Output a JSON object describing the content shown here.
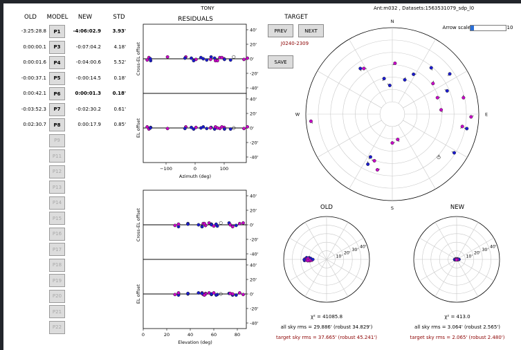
{
  "header": {
    "title": "TONY",
    "dataset_info": "Ant:m032 , Datasets:1563531079_sdp_l0"
  },
  "table": {
    "col_old": "OLD",
    "col_model": "MODEL",
    "col_new": "NEW",
    "col_std": "STD",
    "rows": [
      {
        "old": "-3:25:28.8",
        "model": "P1",
        "new": "-4:06:02.9",
        "std": "3.93'",
        "enabled": true,
        "bold": true
      },
      {
        "old": "0:00:00.1",
        "model": "P3",
        "new": "-0:07:04.2",
        "std": "4.18'",
        "enabled": true,
        "bold": false
      },
      {
        "old": "0:00:01.6",
        "model": "P4",
        "new": "-0:04:00.6",
        "std": "5.52'",
        "enabled": true,
        "bold": false
      },
      {
        "old": "-0:00:37.1",
        "model": "P5",
        "new": "-0:00:14.5",
        "std": "0.18'",
        "enabled": true,
        "bold": false
      },
      {
        "old": "0:00:42.1",
        "model": "P6",
        "new": "0:00:01.3",
        "std": "0.18'",
        "enabled": true,
        "bold": true
      },
      {
        "old": "-0:03:52.3",
        "model": "P7",
        "new": "-0:02:30.2",
        "std": "0.61'",
        "enabled": true,
        "bold": false
      },
      {
        "old": "0:02:30.7",
        "model": "P8",
        "new": "0:00:17.9",
        "std": "0.85'",
        "enabled": true,
        "bold": false
      },
      {
        "old": "",
        "model": "P9",
        "new": "",
        "std": "",
        "enabled": false,
        "bold": false
      },
      {
        "old": "",
        "model": "P11",
        "new": "",
        "std": "",
        "enabled": false,
        "bold": false
      },
      {
        "old": "",
        "model": "P12",
        "new": "",
        "std": "",
        "enabled": false,
        "bold": false
      },
      {
        "old": "",
        "model": "P13",
        "new": "",
        "std": "",
        "enabled": false,
        "bold": false
      },
      {
        "old": "",
        "model": "P14",
        "new": "",
        "std": "",
        "enabled": false,
        "bold": false
      },
      {
        "old": "",
        "model": "P15",
        "new": "",
        "std": "",
        "enabled": false,
        "bold": false
      },
      {
        "old": "",
        "model": "P16",
        "new": "",
        "std": "",
        "enabled": false,
        "bold": false
      },
      {
        "old": "",
        "model": "P17",
        "new": "",
        "std": "",
        "enabled": false,
        "bold": false
      },
      {
        "old": "",
        "model": "P18",
        "new": "",
        "std": "",
        "enabled": false,
        "bold": false
      },
      {
        "old": "",
        "model": "P19",
        "new": "",
        "std": "",
        "enabled": false,
        "bold": false
      },
      {
        "old": "",
        "model": "P20",
        "new": "",
        "std": "",
        "enabled": false,
        "bold": false
      },
      {
        "old": "",
        "model": "P21",
        "new": "",
        "std": "",
        "enabled": false,
        "bold": false
      },
      {
        "old": "",
        "model": "P22",
        "new": "",
        "std": "",
        "enabled": false,
        "bold": false
      }
    ]
  },
  "residuals": {
    "title": "RESIDUALS",
    "ylabel_top": "Cross-EL offset",
    "ylabel_bottom": "EL offset",
    "y_ticks": [
      "40'",
      "20'",
      "0'",
      "-20'",
      "-40'"
    ],
    "az_xlabel": "Azimuth (deg)",
    "az_ticks": [
      "−100",
      "0",
      "100"
    ],
    "el_xlabel": "Elevation (deg)",
    "el_ticks": [
      "0",
      "20",
      "40",
      "60",
      "80"
    ]
  },
  "target": {
    "label": "TARGET",
    "prev_label": "PREV",
    "next_label": "NEXT",
    "save_label": "SAVE",
    "name": "J0240-2309",
    "name_color": "#8b0000"
  },
  "arrow_scale": {
    "label": "Arrow scale",
    "value": "10",
    "fraction": 0.1
  },
  "sky": {
    "n": "N",
    "s": "S",
    "e": "E",
    "w": "W",
    "points": [
      {
        "az": 328,
        "el": 34,
        "c": "m"
      },
      {
        "az": 325,
        "el": 32,
        "c": "b"
      },
      {
        "az": 3,
        "el": 37,
        "c": "m"
      },
      {
        "az": 355,
        "el": 60,
        "c": "b"
      },
      {
        "az": 20,
        "el": 52,
        "c": "b"
      },
      {
        "az": 28,
        "el": 43,
        "c": "b"
      },
      {
        "az": 40,
        "el": 27,
        "c": "b"
      },
      {
        "az": 55,
        "el": 17,
        "c": "b"
      },
      {
        "az": 67,
        "el": 28,
        "c": "b"
      },
      {
        "az": 53,
        "el": 37,
        "c": "m"
      },
      {
        "az": 70,
        "el": 40,
        "c": "m"
      },
      {
        "az": 85,
        "el": 39,
        "c": "m"
      },
      {
        "az": 100,
        "el": 16,
        "c": "m"
      },
      {
        "az": 122,
        "el": 14,
        "c": "b"
      },
      {
        "az": 133,
        "el": 24,
        "c": "o"
      },
      {
        "az": 180,
        "el": 60,
        "c": "m"
      },
      {
        "az": 168,
        "el": 63,
        "c": "m"
      },
      {
        "az": 207,
        "el": 40,
        "c": "b"
      },
      {
        "az": 201,
        "el": 38,
        "c": "m"
      },
      {
        "az": 206,
        "el": 32,
        "c": "b"
      },
      {
        "az": 195,
        "el": 30,
        "c": "m"
      },
      {
        "az": 265,
        "el": 5,
        "c": "m"
      },
      {
        "az": 347,
        "el": 52,
        "c": "b"
      },
      {
        "az": 101,
        "el": 11,
        "c": "b"
      },
      {
        "az": 77,
        "el": 14,
        "c": "m"
      },
      {
        "az": 92,
        "el": 8,
        "c": "m"
      }
    ]
  },
  "polar_old": {
    "title": "OLD",
    "ring_labels": [
      "10'",
      "20'",
      "30'",
      "40'"
    ],
    "chi2": "χ² = 41085.8",
    "all_rms": "all sky rms = 29.886' (robust 34.829')",
    "target_rms": "target sky rms = 37.665' (robust 45.241')"
  },
  "polar_new": {
    "title": "NEW",
    "ring_labels": [
      "10'",
      "20'",
      "30'",
      "40'"
    ],
    "chi2": "χ² = 413.0",
    "all_rms": "all sky rms = 3.064' (robust 2.565')",
    "target_rms": "target sky rms = 2.065' (robust 2.480')"
  },
  "colors": {
    "blue": "#1a1ad0",
    "magenta": "#c800c8",
    "red": "#c81010"
  }
}
